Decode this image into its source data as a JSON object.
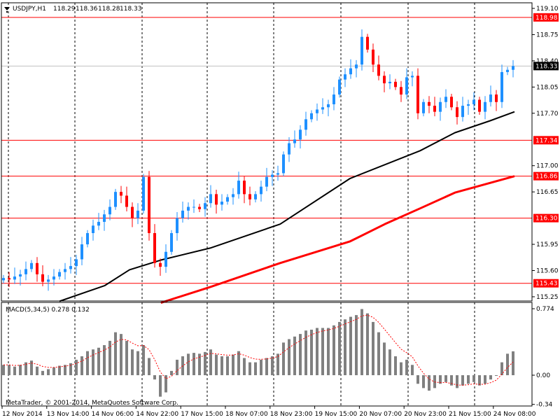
{
  "header": {
    "symbol": "USDJPY,H1",
    "open": "118.29",
    "high": "118.36",
    "low": "118.28",
    "close": "118.33"
  },
  "macd_label": "MACD(5,34,5) 0.278 0.132",
  "copyright": "MetaTrader, © 2001-2014, MetaQuotes Software Corp.",
  "colors": {
    "bull": "#1e90ff",
    "bear": "#ff0000",
    "level": "#ff0000",
    "ma_fast": "#000000",
    "ma_slow": "#ff0000",
    "hist": "#808080"
  },
  "price_axis": [
    "119.10",
    "118.75",
    "118.40",
    "118.05",
    "117.70",
    "117.00",
    "116.65",
    "115.95",
    "115.60",
    "115.25"
  ],
  "levels": [
    "118.98",
    "117.34",
    "116.86",
    "116.30",
    "115.43"
  ],
  "current_price": "118.33",
  "macd_axis": [
    "0.774",
    "0.00",
    "-0.34"
  ],
  "time_axis": [
    "12 Nov 2014",
    "13 Nov 14:00",
    "14 Nov 06:00",
    "14 Nov 22:00",
    "17 Nov 15:00",
    "18 Nov 07:00",
    "18 Nov 23:00",
    "19 Nov 15:00",
    "20 Nov 07:00",
    "20 Nov 23:00",
    "21 Nov 15:00",
    "24 Nov 08:00"
  ],
  "chart_data": {
    "type": "candlestick",
    "closes": [
      115.5,
      115.48,
      115.52,
      115.55,
      115.62,
      115.7,
      115.55,
      115.45,
      115.48,
      115.52,
      115.58,
      115.62,
      115.66,
      115.75,
      115.95,
      116.1,
      116.2,
      116.25,
      116.35,
      116.45,
      116.65,
      116.6,
      116.45,
      116.3,
      116.4,
      116.85,
      116.1,
      115.7,
      115.65,
      115.85,
      116.1,
      116.3,
      116.4,
      116.45,
      116.45,
      116.42,
      116.5,
      116.62,
      116.48,
      116.52,
      116.58,
      116.62,
      116.8,
      116.62,
      116.55,
      116.62,
      116.72,
      116.85,
      116.88,
      116.9,
      117.15,
      117.3,
      117.35,
      117.48,
      117.62,
      117.7,
      117.75,
      117.78,
      117.82,
      117.95,
      118.15,
      118.22,
      118.3,
      118.35,
      118.72,
      118.55,
      118.35,
      118.2,
      118.1,
      118.12,
      118.05,
      117.95,
      118.18,
      118.2,
      117.7,
      117.85,
      117.8,
      117.72,
      117.85,
      117.92,
      117.78,
      117.65,
      117.8,
      117.82,
      117.88,
      117.72,
      117.85,
      117.95,
      117.85,
      118.25,
      118.28,
      118.33
    ],
    "ma_fast": [
      [
        10,
        115.19
      ],
      [
        18.1,
        115.4
      ],
      [
        22.5,
        115.61
      ],
      [
        28.1,
        115.74
      ],
      [
        36.9,
        115.9
      ],
      [
        49.4,
        116.22
      ],
      [
        61.9,
        116.83
      ],
      [
        74.4,
        117.2
      ],
      [
        80.6,
        117.44
      ],
      [
        86.9,
        117.6
      ],
      [
        91.25,
        117.72
      ]
    ],
    "ma_slow": [
      [
        28.1,
        115.17
      ],
      [
        36.9,
        115.38
      ],
      [
        49.4,
        115.7
      ],
      [
        61.9,
        115.99
      ],
      [
        68.1,
        116.22
      ],
      [
        74.4,
        116.43
      ],
      [
        80.6,
        116.64
      ],
      [
        91.25,
        116.86
      ]
    ],
    "macd": [
      0.12,
      0.12,
      0.1,
      0.12,
      0.15,
      0.17,
      0.1,
      0.05,
      0.07,
      0.09,
      0.11,
      0.12,
      0.14,
      0.18,
      0.22,
      0.28,
      0.3,
      0.32,
      0.35,
      0.4,
      0.5,
      0.48,
      0.4,
      0.3,
      0.28,
      0.35,
      0.2,
      -0.05,
      -0.25,
      -0.2,
      0.05,
      0.18,
      0.22,
      0.25,
      0.26,
      0.25,
      0.27,
      0.3,
      0.24,
      0.22,
      0.22,
      0.24,
      0.28,
      0.2,
      0.15,
      0.15,
      0.18,
      0.2,
      0.22,
      0.25,
      0.38,
      0.42,
      0.45,
      0.48,
      0.52,
      0.53,
      0.55,
      0.55,
      0.55,
      0.58,
      0.62,
      0.65,
      0.68,
      0.7,
      0.77,
      0.72,
      0.62,
      0.5,
      0.38,
      0.3,
      0.22,
      0.15,
      0.18,
      0.12,
      -0.1,
      -0.15,
      -0.18,
      -0.15,
      -0.1,
      -0.08,
      -0.12,
      -0.15,
      -0.12,
      -0.1,
      -0.08,
      -0.12,
      -0.1,
      -0.05,
      0.0,
      0.15,
      0.25,
      0.278
    ],
    "price_range": [
      115.25,
      119.1
    ],
    "macd_range": [
      -0.34,
      0.774
    ]
  }
}
